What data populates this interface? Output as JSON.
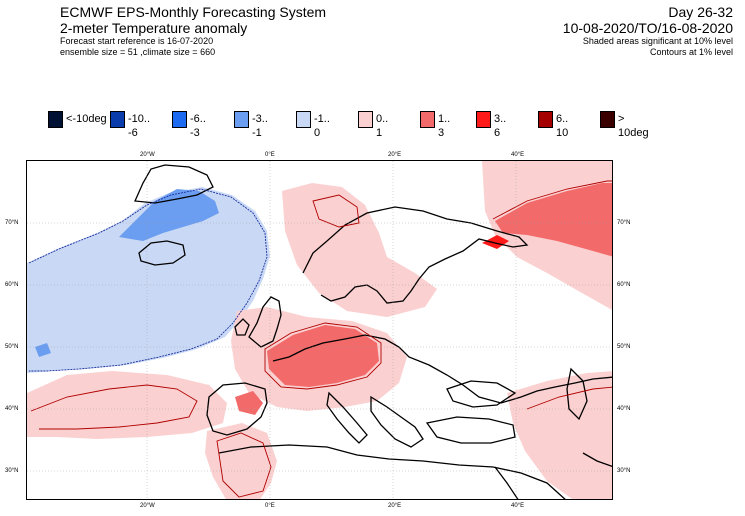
{
  "header": {
    "system_title": "ECMWF EPS-Monthly Forecasting System",
    "parameter": "2-meter Temperature anomaly",
    "forecast_start": "Forecast start reference is 16-07-2020",
    "ensemble_info": "ensemble size = 51  ,climate size = 660",
    "day_range": "Day 26-32",
    "date_range": "10-08-2020/TO/16-08-2020",
    "note_shaded": "Shaded areas significant at 10% level",
    "note_contours": "Contours at 1% level"
  },
  "legend": [
    {
      "label": "<-10deg",
      "color": "#001133"
    },
    {
      "label": "-10.. -6",
      "color": "#0a3dab"
    },
    {
      "label": "-6.. -3",
      "color": "#1b6af0"
    },
    {
      "label": "-3.. -1",
      "color": "#6b9df0"
    },
    {
      "label": "-1.. 0",
      "color": "#c9d9f5"
    },
    {
      "label": "0.. 1",
      "color": "#fbd0d0"
    },
    {
      "label": "1.. 3",
      "color": "#f26a6a"
    },
    {
      "label": "3.. 6",
      "color": "#ff1a1a"
    },
    {
      "label": "6.. 10",
      "color": "#a50000"
    },
    {
      "label": "> 10deg",
      "color": "#3a0000"
    }
  ],
  "axes": {
    "lon_labels": [
      "20°W",
      "0°E",
      "20°E",
      "40°E"
    ],
    "lat_labels_left": [
      "70°N",
      "60°N",
      "50°N",
      "40°N",
      "30°N"
    ],
    "lat_labels_right": [
      "70°N",
      "60°N",
      "50°N",
      "40°N",
      "30°N"
    ]
  }
}
